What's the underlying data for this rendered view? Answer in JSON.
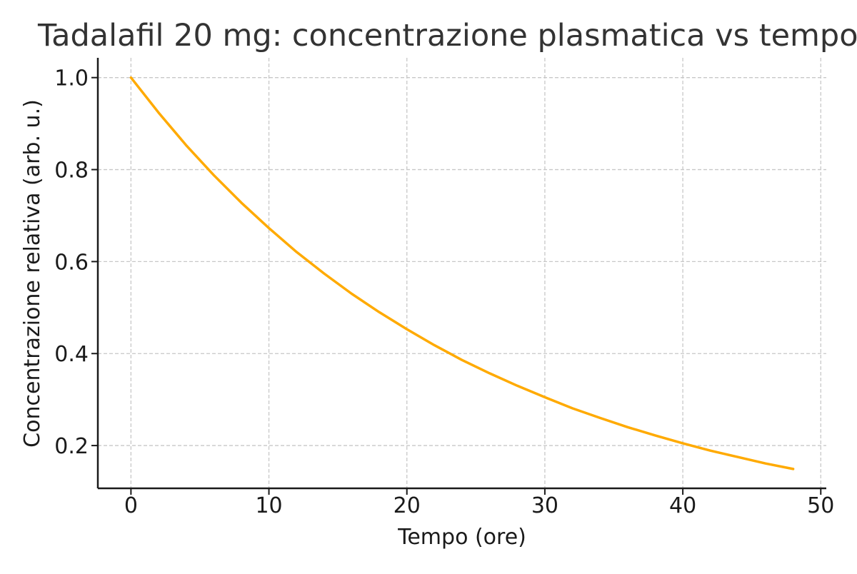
{
  "chart_data": {
    "type": "line",
    "title": "Tadalafil 20 mg: concentrazione plasmatica vs tempo",
    "xlabel": "Tempo (ore)",
    "ylabel": "Concentrazione relativa (arb. u.)",
    "xlim": [
      -2.4,
      50.4
    ],
    "ylim": [
      0.107,
      1.043
    ],
    "xticks": [
      0,
      10,
      20,
      30,
      40,
      50
    ],
    "xtick_labels": [
      "0",
      "10",
      "20",
      "30",
      "40",
      "50"
    ],
    "yticks": [
      0.2,
      0.4,
      0.6,
      0.8,
      1.0
    ],
    "ytick_labels": [
      "0.2",
      "0.4",
      "0.6",
      "0.8",
      "1.0"
    ],
    "grid": true,
    "series": [
      {
        "color": "#ffaa00",
        "x": [
          0,
          2,
          4,
          6,
          8,
          10,
          12,
          14,
          16,
          18,
          20,
          22,
          24,
          26,
          28,
          30,
          32,
          34,
          36,
          38,
          40,
          42,
          44,
          46,
          48
        ],
        "y": [
          1.0,
          0.924,
          0.853,
          0.788,
          0.728,
          0.673,
          0.621,
          0.574,
          0.53,
          0.49,
          0.453,
          0.418,
          0.386,
          0.357,
          0.33,
          0.305,
          0.281,
          0.26,
          0.24,
          0.222,
          0.205,
          0.189,
          0.175,
          0.161,
          0.149
        ]
      }
    ]
  },
  "colors": {
    "line": "#ffaa00",
    "axis": "#1a1a1a",
    "grid": "#c8c8c8",
    "text": "#1a1a1a",
    "title": "#333333"
  }
}
